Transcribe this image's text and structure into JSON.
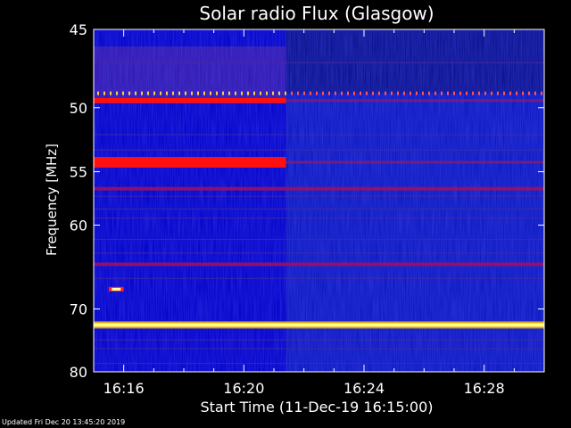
{
  "chart_data": {
    "type": "heatmap",
    "title": "Solar radio Flux (Glasgow)",
    "xlabel": "Start Time (11-Dec-19 16:15:00)",
    "ylabel": "Frequency [MHz]",
    "x_ticks": [
      "16:16",
      "16:20",
      "16:24",
      "16:28"
    ],
    "x_tick_minutes": [
      1,
      5,
      9,
      13
    ],
    "xlim_minutes": [
      0,
      15
    ],
    "y_ticks": [
      45,
      50,
      55,
      60,
      70,
      80
    ],
    "ylim": [
      45,
      80
    ],
    "y_scale": "reciprocal",
    "background_change_minute": 6.4,
    "bands_mhz": [
      {
        "freq": 49.5,
        "intensity": "high",
        "extent_minutes": [
          0,
          6.4
        ]
      },
      {
        "freq": 54.2,
        "intensity": "high",
        "extent_minutes": [
          0,
          6.4
        ]
      },
      {
        "freq": 56.5,
        "intensity": "medium",
        "extent_minutes": [
          0,
          15
        ]
      },
      {
        "freq": 64.3,
        "intensity": "medium",
        "extent_minutes": [
          0,
          15
        ]
      },
      {
        "freq": 72.3,
        "intensity": "saturated",
        "extent_minutes": [
          0,
          15
        ]
      }
    ],
    "colors": {
      "background": "#000000",
      "low": "#0000c8",
      "medium": "#a01060",
      "high": "#ff1010",
      "saturated": "#ffff80"
    }
  },
  "footer": {
    "updated": "Updated Fri Dec 20 13:45:20 2019"
  }
}
